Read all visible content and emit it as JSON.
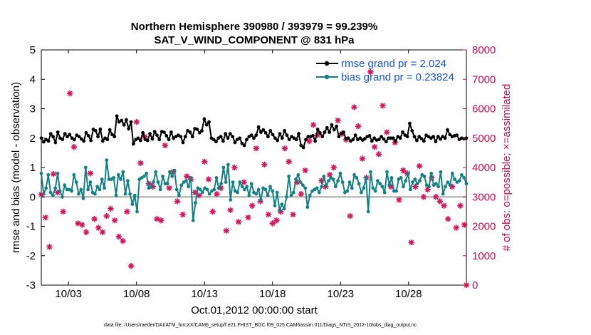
{
  "chart_data": {
    "type": "line",
    "title": "Northern Hemisphere 390980 / 393979 = 99.239%",
    "subtitle": "SAT_V_WIND_COMPONENT @ 831 hPa",
    "xlabel": "Oct.01,2012 00:00:00 start",
    "ylabel_left": "rmse and bias (model - observation)",
    "ylabel_right": "# of obs: o=possible; ×=assimilated",
    "footer": "data file: /Users/raeder/DAI/ATM_forcXX/CAM6_setup/f.e21.FHIST_BGC.f09_025.CAM6assim.011/Diags_NTrS_2012-10/obs_diag_output.nc",
    "x_range": [
      1,
      32.25
    ],
    "ylim_left": [
      -3,
      5
    ],
    "ylim_right": [
      0,
      8000
    ],
    "x_ticks": [
      {
        "pos": 3,
        "label": "10/03"
      },
      {
        "pos": 8,
        "label": "10/08"
      },
      {
        "pos": 13,
        "label": "10/13"
      },
      {
        "pos": 18,
        "label": "10/18"
      },
      {
        "pos": 23,
        "label": "10/23"
      },
      {
        "pos": 28,
        "label": "10/28"
      }
    ],
    "y_ticks_left": [
      -3,
      -2,
      -1,
      0,
      1,
      2,
      3,
      4,
      5
    ],
    "y_ticks_right": [
      0,
      1000,
      2000,
      3000,
      4000,
      5000,
      6000,
      7000,
      8000
    ],
    "zero_line_color": "#aaaaaa",
    "series": [
      {
        "name": "rmse grand pr = 2.024",
        "color": "#000000",
        "axis": "left",
        "values": [
          2.0,
          1.87,
          1.95,
          1.9,
          2.15,
          2.05,
          1.85,
          2.2,
          2.0,
          1.95,
          2.15,
          2.05,
          2.12,
          2.0,
          1.95,
          2.1,
          2.05,
          1.97,
          1.9,
          2.18,
          2.08,
          1.92,
          2.3,
          2.25,
          2.05,
          2.3,
          1.9,
          2.0,
          1.95,
          2.28,
          2.12,
          2.05,
          2.75,
          2.55,
          2.6,
          2.45,
          2.62,
          2.32,
          2.55,
          1.8,
          1.95,
          2.0,
          1.92,
          2.18,
          1.95,
          1.92,
          2.15,
          1.97,
          2.22,
          2.1,
          1.95,
          2.22,
          2.2,
          2.08,
          1.95,
          2.2,
          2.0,
          2.05,
          2.1,
          2.05,
          1.85,
          2.05,
          2.25,
          2.2,
          2.05,
          2.32,
          2.3,
          2.18,
          2.25,
          2.65,
          2.45,
          2.55,
          2.0,
          1.95,
          1.88,
          2.0,
          2.05,
          1.9,
          2.15,
          2.0,
          2.15,
          2.05,
          1.85,
          1.95,
          2.0,
          1.82,
          1.75,
          1.95,
          2.05,
          2.1,
          2.0,
          2.1,
          2.38,
          2.2,
          2.28,
          2.18,
          2.05,
          2.25,
          2.12,
          2.0,
          1.92,
          2.15,
          2.0,
          2.25,
          2.1,
          1.95,
          2.05,
          2.0,
          1.95,
          2.15,
          1.75,
          1.68,
          1.95,
          2.05,
          2.05,
          2.08,
          1.9,
          2.3,
          2.18,
          2.05,
          2.2,
          2.35,
          2.2,
          2.45,
          2.28,
          2.4,
          2.05,
          2.15,
          2.2,
          1.98,
          2.0,
          1.9,
          1.95,
          2.1,
          1.95,
          2.0,
          1.93,
          1.98,
          2.05,
          2.08,
          1.9,
          2.0,
          1.93,
          1.95,
          2.05,
          1.97,
          1.88,
          2.0,
          2.0,
          2.0,
          1.9,
          2.05,
          2.0,
          2.2,
          2.1,
          2.05,
          2.5,
          2.25,
          2.05,
          1.92,
          2.05,
          1.98,
          1.9,
          2.1,
          2.05,
          2.0,
          2.05,
          1.88,
          2.05,
          1.97,
          2.05,
          2.0,
          2.28,
          2.12,
          2.05,
          2.08,
          2.1,
          1.95,
          2.0,
          1.98,
          2.0
        ]
      },
      {
        "name": "bias grand pr = 0.23824",
        "color": "#138183",
        "axis": "left",
        "values": [
          0.8,
          0.1,
          0.3,
          0.75,
          0.15,
          0.05,
          0.3,
          0.8,
          0.2,
          0.0,
          0.4,
          0.25,
          0.25,
          0.2,
          0.75,
          0.5,
          0.1,
          0.25,
          -0.05,
          1.0,
          0.25,
          0.5,
          0.15,
          0.1,
          0.35,
          0.25,
          0.6,
          0.3,
          1.25,
          0.6,
          0.6,
          0.65,
          0.05,
          0.75,
          0.6,
          0.85,
          0.1,
          0.55,
          0.1,
          -0.25,
          0.05,
          -0.5,
          0.6,
          0.65,
          0.7,
          0.8,
          0.3,
          0.35,
          0.5,
          0.85,
          0.5,
          0.25,
          0.7,
          0.45,
          0.45,
          0.85,
          0.7,
          0.9,
          0.25,
          0.05,
          0.4,
          0.5,
          0.55,
          0.35,
          0.65,
          -0.8,
          -0.2,
          0.3,
          0.25,
          0.15,
          0.3,
          0.25,
          0.1,
          0.2,
          0.25,
          0.65,
          0.3,
          0.45,
          1.0,
          0.5,
          1.1,
          -0.1,
          0.5,
          0.2,
          0.15,
          0.5,
          0.35,
          0.25,
          0.35,
          0.05,
          0.45,
          0.15,
          0.1,
          0.25,
          -0.1,
          0.3,
          0.25,
          0.05,
          0.35,
          0.2,
          -0.3,
          0.15,
          -0.45,
          -0.25,
          -0.4,
          0.0,
          0.7,
          0.05,
          0.15,
          0.6,
          0.75,
          0.5,
          0.4,
          0.3,
          -0.35,
          0.05,
          0.2,
          0.25,
          0.3,
          0.15,
          0.35,
          0.7,
          0.4,
          0.55,
          0.65,
          0.6,
          0.35,
          0.55,
          0.8,
          0.5,
          0.15,
          0.2,
          0.5,
          0.3,
          0.75,
          0.65,
          0.45,
          0.15,
          0.3,
          0.65,
          -0.5,
          0.85,
          0.3,
          0.2,
          0.55,
          0.45,
          0.35,
          0.15,
          0.85,
          0.4,
          0.65,
          0.2,
          0.2,
          0.6,
          0.65,
          0.35,
          0.55,
          0.8,
          0.25,
          0.5,
          0.6,
          0.45,
          0.55,
          0.75,
          0.7,
          0.4,
          0.35,
          0.8,
          0.4,
          0.45,
          0.35,
          0.85,
          0.1,
          0.35,
          0.5,
          0.4,
          0.8,
          0.6,
          0.5,
          0.55,
          0.75,
          0.65,
          0.45
        ]
      },
      {
        "name": "# of obs assimilated",
        "color": "#d4145a",
        "axis": "right",
        "type": "scatter",
        "points": [
          [
            1.0,
            3080
          ],
          [
            1.3,
            2300
          ],
          [
            1.6,
            1300
          ],
          [
            1.9,
            3780
          ],
          [
            2.2,
            3150
          ],
          [
            2.6,
            2500
          ],
          [
            3.1,
            6520
          ],
          [
            3.4,
            4700
          ],
          [
            3.7,
            2100
          ],
          [
            4.0,
            2050
          ],
          [
            4.3,
            1800
          ],
          [
            4.6,
            3800
          ],
          [
            4.9,
            2250
          ],
          [
            5.2,
            1950
          ],
          [
            5.5,
            1800
          ],
          [
            5.8,
            2350
          ],
          [
            6.1,
            2600
          ],
          [
            6.4,
            2200
          ],
          [
            6.7,
            1650
          ],
          [
            7.0,
            1500
          ],
          [
            7.3,
            2500
          ],
          [
            7.6,
            650
          ],
          [
            8.0,
            5550
          ],
          [
            8.3,
            4150
          ],
          [
            8.6,
            5050
          ],
          [
            8.9,
            3450
          ],
          [
            9.2,
            3350
          ],
          [
            9.5,
            2250
          ],
          [
            9.8,
            2200
          ],
          [
            10.1,
            4750
          ],
          [
            10.4,
            3300
          ],
          [
            10.7,
            3850
          ],
          [
            11.0,
            2850
          ],
          [
            11.4,
            2400
          ],
          [
            11.7,
            3700
          ],
          [
            12.0,
            3600
          ],
          [
            12.3,
            3150
          ],
          [
            12.6,
            3050
          ],
          [
            13.0,
            4200
          ],
          [
            13.3,
            3600
          ],
          [
            13.6,
            2500
          ],
          [
            13.9,
            3100
          ],
          [
            14.2,
            3300
          ],
          [
            14.6,
            1850
          ],
          [
            14.9,
            2550
          ],
          [
            15.2,
            4000
          ],
          [
            15.5,
            2150
          ],
          [
            15.9,
            3500
          ],
          [
            16.2,
            2300
          ],
          [
            16.5,
            2700
          ],
          [
            16.8,
            4650
          ],
          [
            17.1,
            2850
          ],
          [
            17.4,
            4100
          ],
          [
            17.7,
            2400
          ],
          [
            18.0,
            2100
          ],
          [
            18.3,
            2200
          ],
          [
            18.6,
            2500
          ],
          [
            18.9,
            4650
          ],
          [
            19.2,
            4200
          ],
          [
            19.5,
            2400
          ],
          [
            19.8,
            3500
          ],
          [
            20.1,
            3100
          ],
          [
            20.4,
            3900
          ],
          [
            20.7,
            4900
          ],
          [
            21.0,
            5450
          ],
          [
            21.3,
            5100
          ],
          [
            21.6,
            3550
          ],
          [
            21.9,
            3350
          ],
          [
            22.2,
            3750
          ],
          [
            22.5,
            4000
          ],
          [
            22.8,
            5600
          ],
          [
            23.1,
            5150
          ],
          [
            23.4,
            4950
          ],
          [
            23.7,
            2350
          ],
          [
            24.0,
            6050
          ],
          [
            24.3,
            5400
          ],
          [
            24.6,
            4300
          ],
          [
            24.9,
            3650
          ],
          [
            25.2,
            7250
          ],
          [
            25.5,
            4700
          ],
          [
            25.8,
            4450
          ],
          [
            26.1,
            6100
          ],
          [
            26.4,
            5200
          ],
          [
            26.7,
            3350
          ],
          [
            27.0,
            4850
          ],
          [
            27.3,
            2900
          ],
          [
            27.6,
            3900
          ],
          [
            27.9,
            3800
          ],
          [
            28.2,
            1450
          ],
          [
            28.5,
            3350
          ],
          [
            28.8,
            4050
          ],
          [
            29.1,
            3000
          ],
          [
            29.4,
            3250
          ],
          [
            29.7,
            3650
          ],
          [
            30.0,
            3000
          ],
          [
            30.3,
            2850
          ],
          [
            30.6,
            2700
          ],
          [
            30.9,
            2250
          ],
          [
            31.2,
            3350
          ],
          [
            31.5,
            1950
          ],
          [
            31.8,
            2700
          ],
          [
            32.1,
            2050
          ],
          [
            32.25,
            0
          ]
        ]
      }
    ]
  }
}
